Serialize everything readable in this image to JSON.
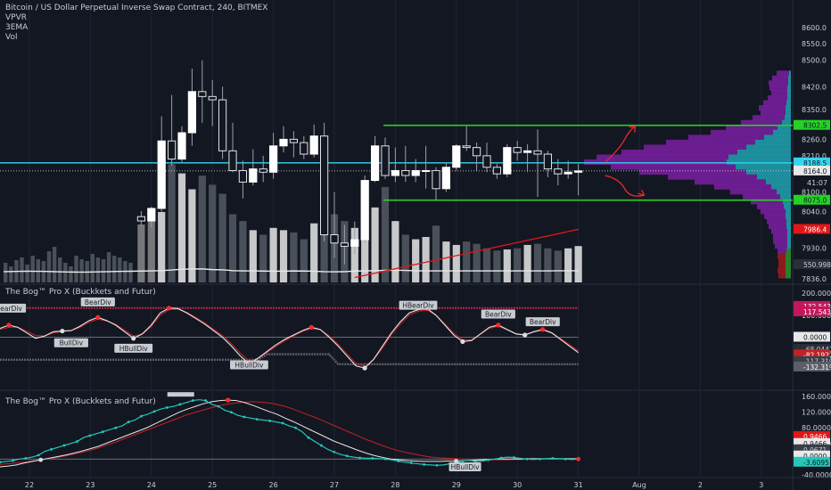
{
  "header": {
    "symbol_title": "Bitcoin / US Dollar Perpetual Inverse Swap Contract, 240, BITMEX",
    "indicators": [
      "VPVR",
      "3EMA",
      "Vol"
    ]
  },
  "colors": {
    "background": "#131722",
    "grid": "#1f2433",
    "candle": "#ffffff",
    "candle_border": "#9aa0ab",
    "range_line": "#26d126",
    "cyan_line": "#33d6f0",
    "ema": "#e8e8e8",
    "trend": "#e01717",
    "arrow": "#f02a2a",
    "vpvr_purple": "#7a1fa2",
    "vpvr_cyan": "#1f9aa8",
    "vpvr_green": "#2e8b2e",
    "vpvr_red": "#a01c1c",
    "osc_line": "#e8e8e8",
    "osc_red": "#c22222",
    "bog_cyan": "#24c7b8",
    "bog_dot_red": "#ff2a2a",
    "bog_dot_white": "#dddddd"
  },
  "chart_data": [
    {
      "type": "candlestick",
      "title": "Bitcoin / US Dollar Perpetual Inverse Swap Contract, 240, BITMEX",
      "ylim": [
        7836,
        8640
      ],
      "y_ticks": [
        8600,
        8550,
        8500,
        8420,
        8350,
        8260,
        8210,
        8164,
        8100,
        8040,
        7930,
        7836
      ],
      "x_ticks": [
        "22",
        "23",
        "24",
        "25",
        "26",
        "27",
        "28",
        "29",
        "30",
        "31",
        "Aug",
        "2",
        "3"
      ],
      "x_tick_dates": [
        "07-22",
        "07-23",
        "07-24",
        "07-25",
        "07-26",
        "07-27",
        "07-28",
        "07-29",
        "07-30",
        "07-31",
        "08-01",
        "08-02",
        "08-03"
      ],
      "candles": [
        {
          "t": "07-23 20:00",
          "o": 8025,
          "h": 8042,
          "l": 7998,
          "c": 8012
        },
        {
          "t": "07-24 00:00",
          "o": 8012,
          "h": 8055,
          "l": 7992,
          "c": 8050
        },
        {
          "t": "07-24 04:00",
          "o": 8050,
          "h": 8330,
          "l": 8040,
          "c": 8255
        },
        {
          "t": "07-24 08:00",
          "o": 8255,
          "h": 8395,
          "l": 8180,
          "c": 8200
        },
        {
          "t": "07-24 12:00",
          "o": 8200,
          "h": 8300,
          "l": 8190,
          "c": 8280
        },
        {
          "t": "07-24 16:00",
          "o": 8280,
          "h": 8475,
          "l": 8240,
          "c": 8405
        },
        {
          "t": "07-24 20:00",
          "o": 8405,
          "h": 8500,
          "l": 8310,
          "c": 8390
        },
        {
          "t": "07-25 00:00",
          "o": 8390,
          "h": 8440,
          "l": 8300,
          "c": 8380
        },
        {
          "t": "07-25 04:00",
          "o": 8380,
          "h": 8420,
          "l": 8200,
          "c": 8225
        },
        {
          "t": "07-25 08:00",
          "o": 8225,
          "h": 8310,
          "l": 8160,
          "c": 8165
        },
        {
          "t": "07-25 12:00",
          "o": 8165,
          "h": 8195,
          "l": 8080,
          "c": 8130
        },
        {
          "t": "07-25 16:00",
          "o": 8130,
          "h": 8230,
          "l": 8120,
          "c": 8170
        },
        {
          "t": "07-25 20:00",
          "o": 8170,
          "h": 8210,
          "l": 8130,
          "c": 8160
        },
        {
          "t": "07-26 00:00",
          "o": 8160,
          "h": 8280,
          "l": 8140,
          "c": 8240
        },
        {
          "t": "07-26 04:00",
          "o": 8240,
          "h": 8300,
          "l": 8220,
          "c": 8260
        },
        {
          "t": "07-26 08:00",
          "o": 8260,
          "h": 8285,
          "l": 8205,
          "c": 8250
        },
        {
          "t": "07-26 12:00",
          "o": 8250,
          "h": 8270,
          "l": 8200,
          "c": 8215
        },
        {
          "t": "07-26 16:00",
          "o": 8215,
          "h": 8305,
          "l": 8205,
          "c": 8270
        },
        {
          "t": "07-26 20:00",
          "o": 8270,
          "h": 8310,
          "l": 7950,
          "c": 7970
        },
        {
          "t": "07-27 00:00",
          "o": 7970,
          "h": 8100,
          "l": 7900,
          "c": 7945
        },
        {
          "t": "07-27 04:00",
          "o": 7945,
          "h": 8000,
          "l": 7880,
          "c": 7935
        },
        {
          "t": "07-27 08:00",
          "o": 7935,
          "h": 8010,
          "l": 7910,
          "c": 7955
        },
        {
          "t": "07-27 12:00",
          "o": 7955,
          "h": 8150,
          "l": 7945,
          "c": 8135
        },
        {
          "t": "07-27 16:00",
          "o": 8135,
          "h": 8270,
          "l": 8130,
          "c": 8240
        },
        {
          "t": "07-27 20:00",
          "o": 8240,
          "h": 8265,
          "l": 8140,
          "c": 8150
        },
        {
          "t": "07-28 00:00",
          "o": 8150,
          "h": 8235,
          "l": 8130,
          "c": 8165
        },
        {
          "t": "07-28 04:00",
          "o": 8165,
          "h": 8240,
          "l": 8130,
          "c": 8150
        },
        {
          "t": "07-28 08:00",
          "o": 8150,
          "h": 8200,
          "l": 8130,
          "c": 8165
        },
        {
          "t": "07-28 12:00",
          "o": 8165,
          "h": 8240,
          "l": 8110,
          "c": 8165
        },
        {
          "t": "07-28 16:00",
          "o": 8165,
          "h": 8175,
          "l": 8075,
          "c": 8110
        },
        {
          "t": "07-28 20:00",
          "o": 8110,
          "h": 8190,
          "l": 8100,
          "c": 8175
        },
        {
          "t": "07-29 00:00",
          "o": 8175,
          "h": 8245,
          "l": 8165,
          "c": 8240
        },
        {
          "t": "07-29 04:00",
          "o": 8240,
          "h": 8300,
          "l": 8225,
          "c": 8235
        },
        {
          "t": "07-29 08:00",
          "o": 8235,
          "h": 8250,
          "l": 8165,
          "c": 8210
        },
        {
          "t": "07-29 12:00",
          "o": 8210,
          "h": 8250,
          "l": 8160,
          "c": 8175
        },
        {
          "t": "07-29 16:00",
          "o": 8175,
          "h": 8185,
          "l": 8140,
          "c": 8155
        },
        {
          "t": "07-29 20:00",
          "o": 8155,
          "h": 8245,
          "l": 8145,
          "c": 8235
        },
        {
          "t": "07-30 00:00",
          "o": 8235,
          "h": 8255,
          "l": 8195,
          "c": 8220
        },
        {
          "t": "07-30 04:00",
          "o": 8220,
          "h": 8245,
          "l": 8160,
          "c": 8225
        },
        {
          "t": "07-30 08:00",
          "o": 8225,
          "h": 8290,
          "l": 8085,
          "c": 8215
        },
        {
          "t": "07-30 12:00",
          "o": 8215,
          "h": 8225,
          "l": 8145,
          "c": 8170
        },
        {
          "t": "07-30 16:00",
          "o": 8170,
          "h": 8200,
          "l": 8120,
          "c": 8155
        },
        {
          "t": "07-30 20:00",
          "o": 8155,
          "h": 8195,
          "l": 8140,
          "c": 8160
        },
        {
          "t": "07-31 00:00",
          "o": 8160,
          "h": 8185,
          "l": 8090,
          "c": 8164
        }
      ],
      "volume": [
        255,
        275,
        310,
        520,
        480,
        410,
        470,
        430,
        390,
        300,
        270,
        230,
        210,
        240,
        230,
        220,
        190,
        260,
        520,
        300,
        270,
        240,
        260,
        330,
        420,
        270,
        210,
        190,
        200,
        250,
        180,
        165,
        180,
        170,
        150,
        140,
        145,
        150,
        165,
        170,
        150,
        140,
        150,
        160
      ],
      "volume_axis_max": 1100,
      "volume_label": "550.998M",
      "ema": [
        550,
        560,
        570,
        600,
        640,
        650,
        655,
        620,
        610,
        570,
        560,
        560,
        550,
        540,
        545,
        555,
        550,
        540,
        520,
        515,
        520,
        550,
        560,
        570,
        585,
        590,
        580,
        565,
        560,
        560,
        560,
        560,
        560,
        560,
        560,
        560,
        560,
        560,
        560,
        560,
        560,
        565,
        565,
        565
      ],
      "levels": [
        {
          "name": "upper-range",
          "value": 8302.5,
          "label": "8302.5",
          "color": "#26d126"
        },
        {
          "name": "cyan",
          "value": 8188.5,
          "label": "8188.5",
          "color": "#33d6f0"
        },
        {
          "name": "last",
          "value": 8164.0,
          "label": "8164.0",
          "color": "#e8e8e8"
        },
        {
          "name": "lower-range",
          "value": 8075.0,
          "label": "8075.0",
          "color": "#26d126"
        }
      ],
      "countdown_label": "41:07",
      "trend_marker": {
        "value": 7986.4,
        "label": "7986.4"
      },
      "vpvr": [
        {
          "price": 8460,
          "buy": 2,
          "sell": 14
        },
        {
          "price": 8445,
          "buy": 3,
          "sell": 18
        },
        {
          "price": 8430,
          "buy": 3,
          "sell": 22
        },
        {
          "price": 8415,
          "buy": 4,
          "sell": 20
        },
        {
          "price": 8400,
          "buy": 4,
          "sell": 18
        },
        {
          "price": 8385,
          "buy": 4,
          "sell": 22
        },
        {
          "price": 8370,
          "buy": 5,
          "sell": 26
        },
        {
          "price": 8355,
          "buy": 6,
          "sell": 30
        },
        {
          "price": 8340,
          "buy": 6,
          "sell": 28
        },
        {
          "price": 8325,
          "buy": 7,
          "sell": 36
        },
        {
          "price": 8310,
          "buy": 10,
          "sell": 46
        },
        {
          "price": 8295,
          "buy": 15,
          "sell": 58
        },
        {
          "price": 8280,
          "buy": 20,
          "sell": 70
        },
        {
          "price": 8265,
          "buy": 30,
          "sell": 85
        },
        {
          "price": 8250,
          "buy": 40,
          "sell": 100
        },
        {
          "price": 8235,
          "buy": 50,
          "sell": 115
        },
        {
          "price": 8220,
          "buy": 60,
          "sell": 130
        },
        {
          "price": 8205,
          "buy": 70,
          "sell": 148
        },
        {
          "price": 8190,
          "buy": 72,
          "sell": 160
        },
        {
          "price": 8175,
          "buy": 62,
          "sell": 140
        },
        {
          "price": 8160,
          "buy": 50,
          "sell": 120
        },
        {
          "price": 8145,
          "buy": 38,
          "sell": 100
        },
        {
          "price": 8130,
          "buy": 28,
          "sell": 80
        },
        {
          "price": 8115,
          "buy": 22,
          "sell": 64
        },
        {
          "price": 8100,
          "buy": 16,
          "sell": 52
        },
        {
          "price": 8085,
          "buy": 12,
          "sell": 42
        },
        {
          "price": 8070,
          "buy": 9,
          "sell": 36
        },
        {
          "price": 8055,
          "buy": 8,
          "sell": 30
        },
        {
          "price": 8040,
          "buy": 6,
          "sell": 28
        },
        {
          "price": 8025,
          "buy": 6,
          "sell": 24
        },
        {
          "price": 8010,
          "buy": 5,
          "sell": 22
        },
        {
          "price": 7995,
          "buy": 5,
          "sell": 20
        },
        {
          "price": 7980,
          "buy": 4,
          "sell": 18
        },
        {
          "price": 7965,
          "buy": 4,
          "sell": 16
        },
        {
          "price": 7950,
          "buy": 4,
          "sell": 16
        },
        {
          "price": 7935,
          "buy": 4,
          "sell": 14
        },
        {
          "price": 7920,
          "buy": 5,
          "sell": 10
        },
        {
          "price": 7905,
          "buy": 6,
          "sell": 9
        },
        {
          "price": 7890,
          "buy": 6,
          "sell": 8
        },
        {
          "price": 7875,
          "buy": 6,
          "sell": 8
        },
        {
          "price": 7860,
          "buy": 6,
          "sell": 9
        },
        {
          "price": 7845,
          "buy": 6,
          "sell": 8
        }
      ]
    },
    {
      "type": "line",
      "title": "The Bog™ Pro X (Buckkets and Futur)",
      "ylim": [
        -200,
        200
      ],
      "y_ticks": [
        200,
        100
      ],
      "value_labels": [
        "132.5430",
        "117.5436",
        "0.0000",
        "-68.0441",
        "-82.1922",
        "-117.3196",
        "-132.3196"
      ],
      "upper_band": 132.5,
      "lower_band": -132.3,
      "main": [
        40,
        55,
        45,
        20,
        -5,
        5,
        25,
        28,
        30,
        50,
        75,
        90,
        75,
        55,
        25,
        -5,
        15,
        55,
        110,
        132,
        130,
        110,
        85,
        60,
        30,
        0,
        -40,
        -85,
        -120,
        -95,
        -65,
        -35,
        -10,
        10,
        30,
        45,
        35,
        0,
        -40,
        -85,
        -130,
        -140,
        -100,
        -40,
        20,
        70,
        110,
        125,
        130,
        100,
        55,
        10,
        -20,
        -15,
        15,
        45,
        55,
        35,
        15,
        10,
        25,
        35,
        20,
        -10,
        -40,
        -70
      ],
      "signal": [
        35,
        45,
        45,
        28,
        8,
        6,
        20,
        26,
        30,
        45,
        68,
        82,
        74,
        58,
        32,
        5,
        14,
        48,
        100,
        125,
        128,
        112,
        90,
        65,
        36,
        8,
        -30,
        -72,
        -108,
        -96,
        -70,
        -42,
        -16,
        6,
        26,
        40,
        34,
        6,
        -32,
        -76,
        -118,
        -132,
        -102,
        -48,
        12,
        60,
        100,
        118,
        124,
        100,
        60,
        18,
        -12,
        -12,
        14,
        40,
        50,
        34,
        16,
        12,
        24,
        32,
        20,
        -6,
        -34,
        -62
      ],
      "div_labels": [
        {
          "text": "BearDiv",
          "idx": 0,
          "value": 132
        },
        {
          "text": "BullDiv",
          "idx": 7,
          "value": -25
        },
        {
          "text": "BearDiv",
          "idx": 10,
          "value": 160
        },
        {
          "text": "HBullDiv",
          "idx": 14,
          "value": -50
        },
        {
          "text": "HBullDiv",
          "idx": 27,
          "value": -125
        },
        {
          "text": "HBearDiv",
          "idx": 46,
          "value": 145
        },
        {
          "text": "BearDiv",
          "idx": 55,
          "value": 105
        },
        {
          "text": "BearDiv",
          "idx": 60,
          "value": 70
        }
      ]
    },
    {
      "type": "line",
      "title": "The Bog™ Pro X (Buckkets and Futur)",
      "ylim": [
        -45,
        165
      ],
      "y_ticks": [
        160,
        120,
        80,
        40,
        -40
      ],
      "value_labels": [
        "0.9466",
        "0.9466",
        "0.0671",
        "0.0000",
        "-3.6095"
      ],
      "cyan": [
        -8,
        -6,
        -4,
        0,
        2,
        5,
        10,
        20,
        25,
        30,
        35,
        40,
        45,
        55,
        60,
        65,
        70,
        75,
        80,
        85,
        95,
        100,
        110,
        115,
        122,
        128,
        132,
        135,
        140,
        145,
        150,
        152,
        150,
        140,
        135,
        125,
        120,
        112,
        108,
        105,
        102,
        100,
        98,
        95,
        92,
        85,
        80,
        70,
        55,
        45,
        35,
        25,
        18,
        12,
        8,
        5,
        3,
        2,
        2,
        1,
        0,
        -2,
        -5,
        -8,
        -10,
        -12,
        -14,
        -15,
        -16,
        -15,
        -12,
        -8,
        -5,
        -3,
        -6,
        -5,
        -2,
        0,
        3,
        5,
        4,
        2,
        0,
        -1,
        0,
        1,
        2,
        1,
        0,
        -1,
        0
      ],
      "white": [
        -20,
        -18,
        -15,
        -10,
        -6,
        -2,
        2,
        6,
        10,
        15,
        20,
        26,
        32,
        40,
        48,
        56,
        64,
        72,
        80,
        90,
        100,
        110,
        120,
        128,
        135,
        142,
        147,
        150,
        151,
        150,
        145,
        138,
        130,
        122,
        115,
        105,
        96,
        86,
        76,
        66,
        56,
        46,
        38,
        30,
        22,
        15,
        9,
        4,
        0,
        -2,
        -4,
        -5,
        -6,
        -6,
        -6,
        -5,
        -5,
        -4,
        -3,
        -2,
        -1,
        0,
        0,
        0,
        0,
        1,
        1,
        1,
        1,
        1,
        1,
        1
      ],
      "red": [
        -14,
        -12,
        -10,
        -8,
        -5,
        -2,
        1,
        4,
        8,
        12,
        17,
        22,
        28,
        35,
        42,
        50,
        58,
        66,
        74,
        82,
        90,
        98,
        106,
        114,
        120,
        126,
        132,
        137,
        141,
        144,
        146,
        147,
        146,
        144,
        140,
        135,
        128,
        120,
        112,
        104,
        95,
        86,
        77,
        68,
        59,
        50,
        42,
        34,
        27,
        21,
        16,
        12,
        8,
        5,
        3,
        2,
        1,
        0,
        -1,
        -2,
        -2,
        -2,
        -2,
        -1,
        -1,
        0,
        0,
        0,
        0,
        0,
        0,
        0
      ]
    }
  ]
}
